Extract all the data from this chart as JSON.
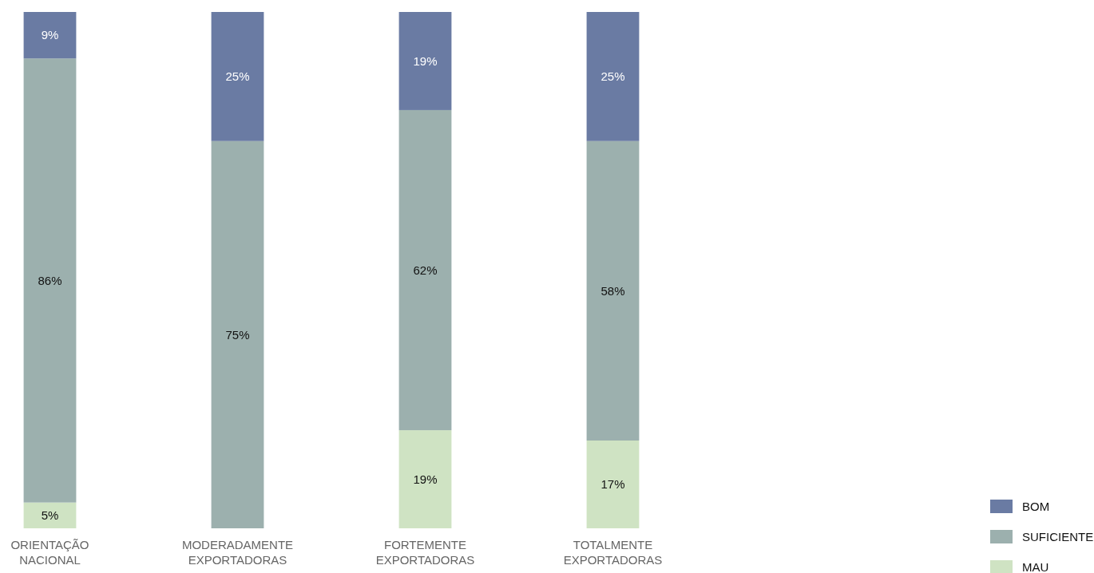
{
  "chart_data": {
    "type": "bar",
    "stacked": true,
    "categories": [
      "ORIENTAÇÃO NACIONAL",
      "MODERADAMENTE EXPORTADORAS",
      "FORTEMENTE EXPORTADORAS",
      "TOTALMENTE EXPORTADORAS"
    ],
    "ylim": [
      0,
      100
    ],
    "tick_labels": "x",
    "legend": "bottom right",
    "series": [
      {
        "name": "MAU",
        "color": "#cfe3c3",
        "values": [
          5,
          0,
          19,
          17
        ],
        "value_labels": [
          "5%",
          null,
          "19%",
          "17%"
        ]
      },
      {
        "name": "SUFICIENTE",
        "color": "#9cb0ae",
        "values": [
          86,
          75,
          62,
          58
        ],
        "value_labels": [
          "86%",
          "75%",
          "62%",
          "58%"
        ]
      },
      {
        "name": "BOM",
        "color": "#6a7ba3",
        "values": [
          9,
          25,
          19,
          25
        ],
        "value_labels": [
          "9%",
          "25%",
          "19%",
          "25%"
        ]
      }
    ]
  }
}
